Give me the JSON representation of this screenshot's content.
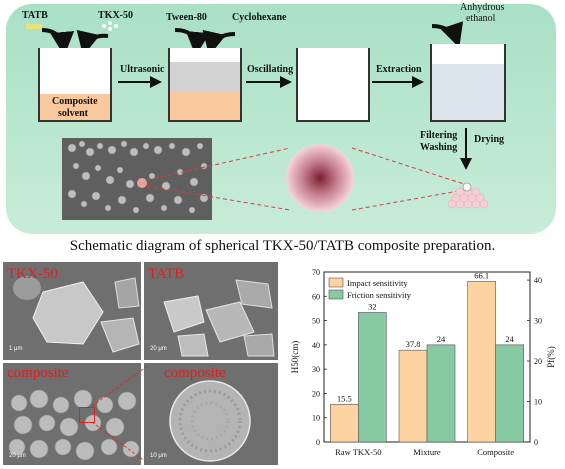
{
  "schematic": {
    "labels": {
      "tatb": "TATB",
      "tkx50": "TKX-50",
      "tween80": "Tween-80",
      "cyclohexane": "Cyclohexane",
      "anhydrous_ethanol_1": "Anhydrous",
      "anhydrous_ethanol_2": "ethanol",
      "composite_solvent_1": "Composite",
      "composite_solvent_2": "solvent",
      "ultrasonic": "Ultrasonic",
      "oscillating": "Oscillating",
      "extraction": "Extraction",
      "filtering": "Filtering",
      "washing": "Washing",
      "drying": "Drying"
    },
    "colors": {
      "panel": "#b9e6cf",
      "solvent": "#f9c89d",
      "oil": "#d2d2d2",
      "droplet": "#f9c89d",
      "product": "#f4cfd6",
      "arrow": "#d04040"
    }
  },
  "caption": "Schematic diagram of spherical TKX-50/TATB composite preparation.",
  "micrographs": [
    {
      "tag": "TKX-50",
      "scale": "1 μm"
    },
    {
      "tag": "TATB",
      "scale": "20 μm"
    },
    {
      "tag": "composite",
      "scale": "20 μm"
    },
    {
      "tag": "composite",
      "scale": "10 μm"
    }
  ],
  "chart_data": {
    "type": "bar",
    "categories": [
      "Raw TKX-50",
      "Mixture",
      "Composite"
    ],
    "series": [
      {
        "name": "Impact sensitivity",
        "axis": "left",
        "color": "#fcd3a1",
        "values": [
          15.5,
          37.8,
          66.1
        ]
      },
      {
        "name": "Friction sensitivity",
        "axis": "right",
        "color": "#86c9a3",
        "values": [
          32,
          24,
          24
        ]
      }
    ],
    "ylabel_left": "H50(cm)",
    "ylabel_right": "Pf(%)",
    "ylim_left": [
      0,
      70
    ],
    "ylim_right": [
      0,
      42
    ],
    "yticks_left": [
      0,
      10,
      20,
      30,
      40,
      50,
      60,
      70
    ],
    "yticks_right": [
      0,
      10,
      20,
      30,
      40
    ],
    "legend": "top-left",
    "grid": false
  }
}
